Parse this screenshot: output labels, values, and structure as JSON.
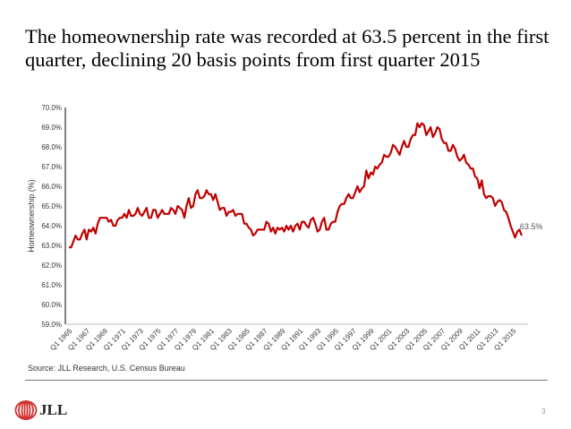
{
  "slide": {
    "title": "The homeownership rate was recorded at 63.5 percent in the first quarter, declining 20 basis points from first quarter 2015",
    "source": "Source: JLL Research, U.S. Census Bureau",
    "logo_text": "JLL",
    "page_number": "3"
  },
  "colors": {
    "line": "#c00000",
    "axis": "#000000",
    "text": "#333333"
  },
  "chart_data": {
    "type": "line",
    "title": "",
    "xlabel": "",
    "ylabel": "Homeownership (%)",
    "ylim": [
      59.0,
      70.0
    ],
    "yticks": [
      "59.0%",
      "60.0%",
      "61.0%",
      "62.0%",
      "63.0%",
      "64.0%",
      "65.0%",
      "66.0%",
      "67.0%",
      "68.0%",
      "69.0%",
      "70.0%"
    ],
    "xticks": [
      "Q1 1965",
      "Q1 1967",
      "Q1 1969",
      "Q1 1971",
      "Q1 1973",
      "Q1 1975",
      "Q1 1977",
      "Q1 1979",
      "Q1 1981",
      "Q1 1983",
      "Q1 1985",
      "Q1 1987",
      "Q1 1989",
      "Q1 1991",
      "Q1 1993",
      "Q1 1995",
      "Q1 1997",
      "Q1 1999",
      "Q1 2001",
      "Q1 2003",
      "Q1 2005",
      "Q1 2007",
      "Q1 2009",
      "Q1 2011",
      "Q1 2013",
      "Q1 2015"
    ],
    "x_start": "Q1 1965",
    "x_end": "Q1 2016",
    "grid": false,
    "annotation": "63.5%",
    "series": [
      {
        "name": "Homeownership rate",
        "values": [
          62.9,
          62.9,
          63.2,
          63.5,
          63.3,
          63.3,
          63.6,
          63.8,
          63.3,
          63.8,
          63.7,
          63.9,
          63.6,
          64.1,
          64.4,
          64.4,
          64.4,
          64.4,
          64.2,
          64.3,
          64.0,
          64.0,
          64.3,
          64.4,
          64.4,
          64.6,
          64.4,
          64.8,
          64.5,
          64.5,
          64.6,
          64.9,
          64.6,
          64.5,
          64.7,
          64.9,
          64.4,
          64.4,
          64.8,
          64.8,
          64.4,
          64.6,
          64.8,
          64.6,
          64.6,
          64.6,
          64.9,
          64.8,
          64.6,
          65.0,
          64.9,
          64.8,
          64.4,
          65.0,
          65.4,
          64.9,
          65.0,
          65.6,
          65.8,
          65.4,
          65.4,
          65.5,
          65.8,
          65.6,
          65.6,
          65.3,
          65.6,
          65.2,
          64.8,
          64.9,
          64.9,
          64.5,
          64.7,
          64.7,
          64.8,
          64.5,
          64.6,
          64.6,
          64.6,
          64.1,
          64.1,
          63.9,
          63.8,
          63.5,
          63.6,
          63.8,
          63.8,
          63.8,
          63.8,
          64.2,
          64.1,
          63.7,
          63.9,
          63.6,
          63.9,
          63.8,
          63.9,
          63.7,
          64.0,
          63.8,
          64.0,
          63.7,
          64.0,
          64.1,
          63.8,
          64.2,
          64.2,
          64.0,
          63.9,
          64.3,
          64.4,
          64.1,
          63.7,
          63.8,
          64.2,
          64.4,
          63.8,
          63.8,
          64.1,
          64.2,
          64.2,
          64.7,
          65.0,
          65.1,
          65.1,
          65.4,
          65.6,
          65.4,
          65.4,
          65.7,
          66.0,
          65.7,
          65.9,
          66.0,
          66.8,
          66.4,
          66.7,
          66.6,
          67.0,
          66.9,
          67.1,
          67.2,
          67.6,
          67.5,
          67.5,
          67.7,
          68.1,
          68.0,
          67.8,
          67.6,
          68.0,
          68.3,
          68.0,
          68.0,
          68.4,
          68.6,
          68.6,
          69.2,
          69.0,
          69.2,
          69.1,
          68.6,
          68.8,
          69.0,
          68.5,
          68.7,
          69.0,
          68.9,
          68.4,
          68.2,
          68.2,
          67.8,
          67.8,
          68.1,
          67.9,
          67.5,
          67.3,
          67.4,
          67.6,
          67.2,
          67.1,
          66.9,
          66.9,
          66.5,
          66.4,
          65.9,
          66.3,
          65.6,
          65.4,
          65.5,
          65.5,
          65.4,
          65.0,
          65.2,
          65.3,
          65.2,
          64.8,
          64.7,
          64.4,
          64.0,
          63.7,
          63.4,
          63.7,
          63.8,
          63.5
        ]
      }
    ]
  }
}
